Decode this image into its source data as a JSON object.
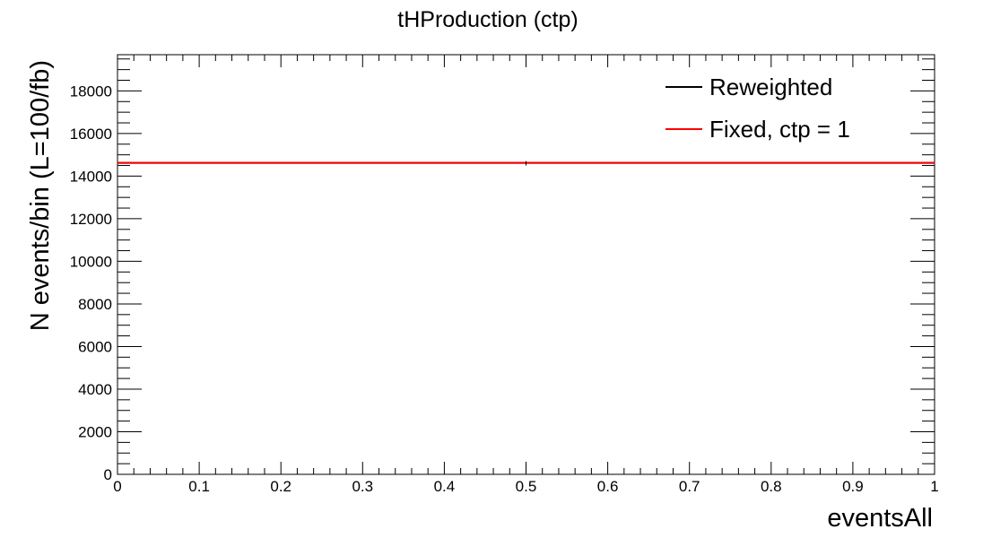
{
  "chart_data": {
    "type": "line",
    "title": "tHProduction (ctp)",
    "xlabel": "eventsAll",
    "ylabel": "N events/bin (L=100/fb)",
    "xlim": [
      0,
      1
    ],
    "ylim": [
      0,
      19700
    ],
    "x_ticks": [
      0,
      0.1,
      0.2,
      0.3,
      0.4,
      0.5,
      0.6,
      0.7,
      0.8,
      0.9,
      1
    ],
    "x_tick_labels": [
      "0",
      "0.1",
      "0.2",
      "0.3",
      "0.4",
      "0.5",
      "0.6",
      "0.7",
      "0.8",
      "0.9",
      "1"
    ],
    "y_ticks": [
      0,
      2000,
      4000,
      6000,
      8000,
      10000,
      12000,
      14000,
      16000,
      18000
    ],
    "y_tick_labels": [
      "0",
      "2000",
      "4000",
      "6000",
      "8000",
      "10000",
      "12000",
      "14000",
      "16000",
      "18000"
    ],
    "grid": false,
    "legend_position": "top-right",
    "series": [
      {
        "name": "Reweighted",
        "color": "#000000",
        "x": [
          0,
          1
        ],
        "y": [
          14620,
          14620
        ]
      },
      {
        "name": "Fixed, ctp = 1",
        "color": "#ff0000",
        "x": [
          0,
          1
        ],
        "y": [
          14620,
          14620
        ]
      }
    ]
  }
}
